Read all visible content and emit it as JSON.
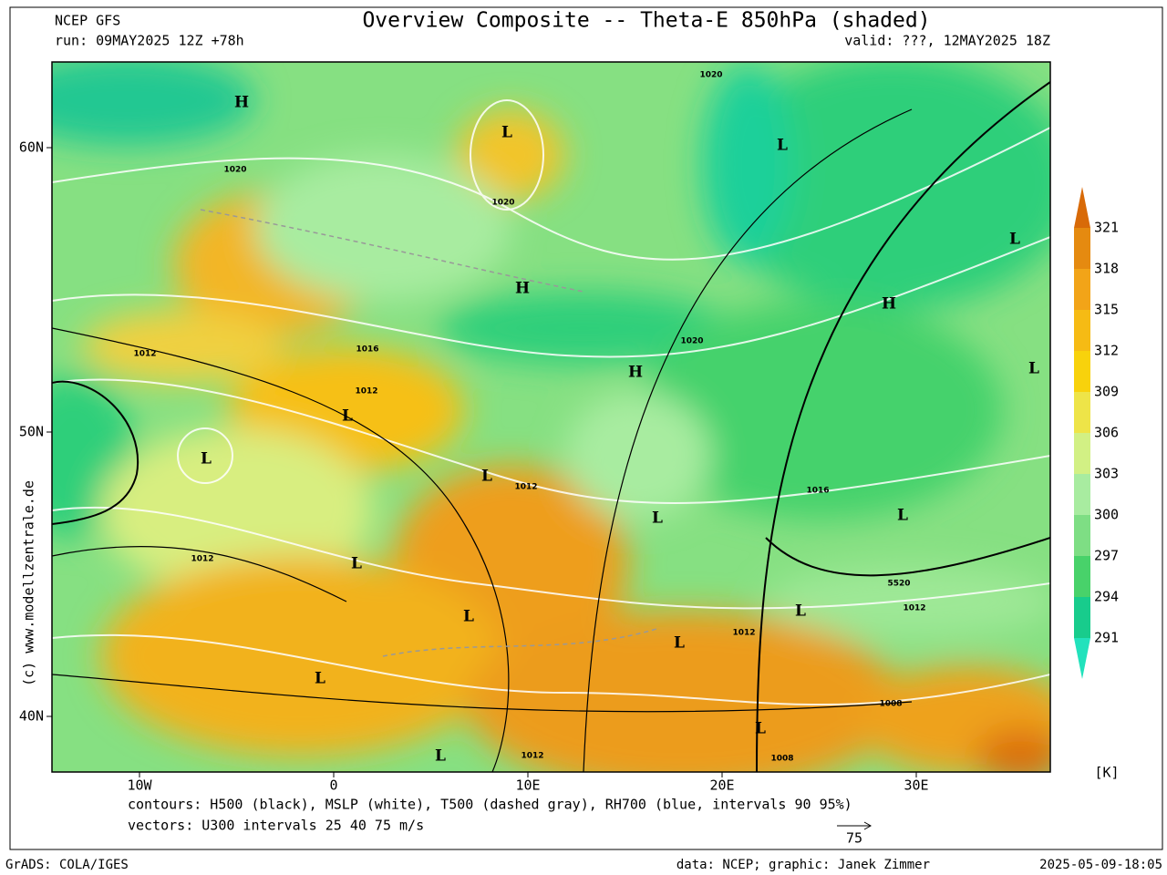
{
  "header": {
    "model": "NCEP GFS",
    "run": "run: 09MAY2025 12Z +78h",
    "title": "Overview Composite -- Theta-E 850hPa (shaded)",
    "valid": "valid: ???, 12MAY2025 18Z"
  },
  "map": {
    "lat_labels": [
      "60N",
      "50N",
      "40N"
    ],
    "lon_labels": [
      "10W",
      "0",
      "10E",
      "20E",
      "30E"
    ],
    "annotations": [
      "H",
      "L",
      "L",
      "1020",
      "1020",
      "1020",
      "H",
      "L",
      "H",
      "L",
      "H",
      "1020",
      "1016",
      "1012",
      "1012",
      "L",
      "L",
      "L",
      "1012",
      "L",
      "1016",
      "L",
      "L",
      "1012",
      "5520",
      "1012",
      "L",
      "L",
      "1012",
      "L",
      "L",
      "1008",
      "L",
      "L",
      "1012",
      "1008"
    ],
    "watermark": "(c) www.modellzentrale.de"
  },
  "colorbar": {
    "labels": [
      321,
      318,
      315,
      312,
      309,
      306,
      303,
      300,
      297,
      294,
      291
    ],
    "unit": "[K]",
    "colors": [
      "#d86a08",
      "#e58a10",
      "#f2a418",
      "#f6bb14",
      "#f8d20c",
      "#eee448",
      "#d2f084",
      "#a8eca0",
      "#7ede84",
      "#48d26a",
      "#18cc8c",
      "#22e2bc"
    ]
  },
  "footer": {
    "contours": "contours: H500 (black), MSLP (white), T500 (dashed gray), RH700 (blue, intervals 90 95%)",
    "vectors": "vectors: U300 intervals 25 40 75 m/s",
    "vector_scale": "75",
    "software": "GrADS: COLA/IGES",
    "credits": "data: NCEP; graphic: Janek Zimmer",
    "timestamp": "2025-05-09-18:05"
  }
}
